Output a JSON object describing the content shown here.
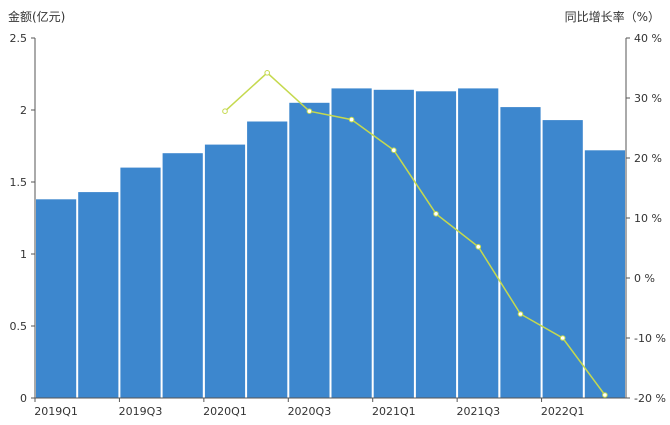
{
  "chart_data": {
    "type": "bar",
    "categories": [
      "2019Q1",
      "2019Q2",
      "2019Q3",
      "2019Q4",
      "2020Q1",
      "2020Q2",
      "2020Q3",
      "2020Q4",
      "2021Q1",
      "2021Q2",
      "2021Q3",
      "2021Q4",
      "2022Q1",
      "2022Q2"
    ],
    "x_tick_labels": [
      "2019Q1",
      "2019Q3",
      "2020Q1",
      "2020Q3",
      "2021Q1",
      "2021Q3",
      "2022Q1"
    ],
    "ylabel": "金额(亿元)",
    "y2label": "同比增长率（%）",
    "ylim": [
      0,
      2.5
    ],
    "y_ticks": [
      "0",
      "0.5",
      "1",
      "1.5",
      "2",
      "2.5"
    ],
    "y2lim": [
      -20,
      40
    ],
    "y2_ticks": [
      "-20 %",
      "-10 %",
      "0 %",
      "10 %",
      "20 %",
      "30 %",
      "40 %"
    ],
    "series": [
      {
        "type": "bar",
        "axis": "left",
        "values": [
          1.38,
          1.43,
          1.6,
          1.7,
          1.76,
          1.92,
          2.05,
          2.15,
          2.14,
          2.13,
          2.15,
          2.02,
          1.93,
          1.72
        ]
      },
      {
        "type": "line",
        "axis": "right",
        "values": [
          null,
          null,
          null,
          null,
          27.8,
          34.2,
          27.8,
          26.4,
          21.3,
          10.7,
          5.2,
          -6.0,
          -10.0,
          -19.5
        ]
      }
    ],
    "colors": {
      "bar": "#3d87ce",
      "line": "#c5d94e",
      "axis": "#555555",
      "text": "#333333"
    },
    "grid": false,
    "legend": "none"
  }
}
